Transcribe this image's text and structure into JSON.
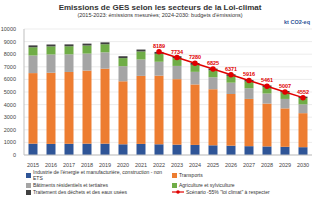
{
  "chart_data": {
    "type": "bar",
    "title": "Emissions de GES selon les secteurs de la Loi-climat",
    "subtitle": "(2015-2023: émissions mesurées; 2024-2030: budgets d'émissions)",
    "ylabel": "kt CO2-eq",
    "categories": [
      "2015",
      "2016",
      "2017",
      "2018",
      "2019",
      "2020",
      "2021",
      "2022",
      "2023",
      "2024",
      "2025",
      "2026",
      "2027",
      "2028",
      "2029",
      "2030"
    ],
    "stacked": true,
    "grid": true,
    "ylim": [
      0,
      10000
    ],
    "yticks": [
      0,
      1000,
      2000,
      3000,
      4000,
      5000,
      6000,
      7000,
      8000,
      9000,
      10000
    ],
    "series": [
      {
        "name": "Industrie de l'énergie et manufacturière, construction - non ETS",
        "type": "bar",
        "color": "#2f5597",
        "values": [
          900,
          880,
          890,
          900,
          900,
          850,
          880,
          850,
          820,
          800,
          770,
          740,
          700,
          680,
          650,
          620
        ]
      },
      {
        "name": "Transports",
        "type": "bar",
        "color": "#ed7d31",
        "values": [
          5600,
          5650,
          5700,
          5800,
          5950,
          5000,
          5400,
          5450,
          5200,
          4800,
          4450,
          4100,
          3750,
          3400,
          3050,
          2700
        ]
      },
      {
        "name": "Bâtiments résidentiels et tertiaires",
        "type": "bar",
        "color": "#a5a5a5",
        "values": [
          1400,
          1450,
          1400,
          1350,
          1300,
          1200,
          1300,
          1100,
          1050,
          1000,
          950,
          900,
          850,
          800,
          750,
          700
        ]
      },
      {
        "name": "Agriculture et sylviculture",
        "type": "bar",
        "color": "#70ad47",
        "values": [
          650,
          640,
          640,
          640,
          640,
          640,
          640,
          630,
          620,
          560,
          550,
          540,
          530,
          520,
          510,
          500
        ]
      },
      {
        "name": "Traitement des déchets et des eaux usées",
        "type": "bar",
        "color": "#404040",
        "values": [
          150,
          150,
          150,
          150,
          150,
          150,
          150,
          150,
          150,
          140,
          140,
          130,
          130,
          120,
          120,
          110
        ]
      },
      {
        "name": "Scénario -55% \"loi climat\" à respecter",
        "type": "line",
        "color": "#e00000",
        "marker": "circle",
        "line_style": "solid",
        "data_labels": true,
        "values": [
          null,
          null,
          null,
          null,
          null,
          null,
          null,
          8189,
          7734,
          7280,
          6825,
          6371,
          5916,
          5461,
          5007,
          4552
        ]
      }
    ]
  }
}
